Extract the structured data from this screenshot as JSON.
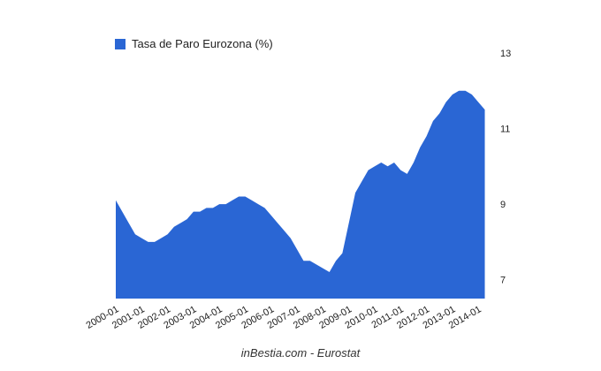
{
  "chart_data": {
    "type": "area",
    "legend": "top-left",
    "caption": "inBestia.com - Eurostat",
    "series": [
      {
        "name": "Tasa de Paro Eurozona (%)",
        "color": "#2a66d4",
        "values": [
          9.1,
          8.8,
          8.5,
          8.2,
          8.1,
          8.0,
          8.0,
          8.1,
          8.2,
          8.4,
          8.5,
          8.6,
          8.8,
          8.8,
          8.9,
          8.9,
          9.0,
          9.0,
          9.1,
          9.2,
          9.2,
          9.1,
          9.0,
          8.9,
          8.7,
          8.5,
          8.3,
          8.1,
          7.8,
          7.5,
          7.5,
          7.4,
          7.3,
          7.2,
          7.5,
          7.7,
          8.5,
          9.3,
          9.6,
          9.9,
          10.0,
          10.1,
          10.0,
          10.1,
          9.9,
          9.8,
          10.1,
          10.5,
          10.8,
          11.2,
          11.4,
          11.7,
          11.9,
          12.0,
          12.0,
          11.9,
          11.7,
          11.5
        ]
      }
    ],
    "x": [
      2000,
      2000.25,
      2000.5,
      2000.75,
      2001,
      2001.25,
      2001.5,
      2001.75,
      2002,
      2002.25,
      2002.5,
      2002.75,
      2003,
      2003.25,
      2003.5,
      2003.75,
      2004,
      2004.25,
      2004.5,
      2004.75,
      2005,
      2005.25,
      2005.5,
      2005.75,
      2006,
      2006.25,
      2006.5,
      2006.75,
      2007,
      2007.25,
      2007.5,
      2007.75,
      2008,
      2008.25,
      2008.5,
      2008.75,
      2009,
      2009.25,
      2009.5,
      2009.75,
      2010,
      2010.25,
      2010.5,
      2010.75,
      2011,
      2011.25,
      2011.5,
      2011.75,
      2012,
      2012.25,
      2012.5,
      2012.75,
      2013,
      2013.25,
      2013.5,
      2013.75,
      2014,
      2014.25
    ],
    "xlim": [
      2000,
      2014.3
    ],
    "xticks": [
      {
        "value": 2000,
        "label": "2000-01"
      },
      {
        "value": 2001,
        "label": "2001-01"
      },
      {
        "value": 2002,
        "label": "2002-01"
      },
      {
        "value": 2003,
        "label": "2003-01"
      },
      {
        "value": 2004,
        "label": "2004-01"
      },
      {
        "value": 2005,
        "label": "2005-01"
      },
      {
        "value": 2006,
        "label": "2006-01"
      },
      {
        "value": 2007,
        "label": "2007-01"
      },
      {
        "value": 2008,
        "label": "2008-01"
      },
      {
        "value": 2009,
        "label": "2009-01"
      },
      {
        "value": 2010,
        "label": "2010-01"
      },
      {
        "value": 2011,
        "label": "2011-01"
      },
      {
        "value": 2012,
        "label": "2012-01"
      },
      {
        "value": 2013,
        "label": "2013-01"
      },
      {
        "value": 2014,
        "label": "2014-01"
      }
    ],
    "ylim": [
      6.5,
      13
    ],
    "yticks": [
      7,
      9,
      11,
      13
    ]
  }
}
